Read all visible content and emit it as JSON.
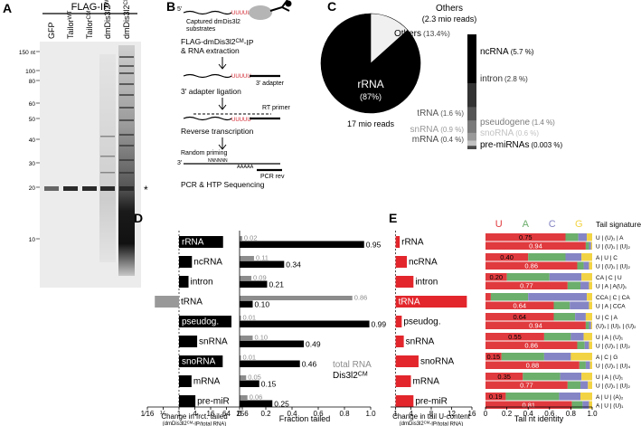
{
  "panel_a": {
    "letter": "A",
    "header": "FLAG-IP",
    "lanes": [
      {
        "text": "GFP"
      },
      {
        "text": "Tailor",
        "sup": "WT"
      },
      {
        "text": "Tailor",
        "sup": "CM"
      },
      {
        "text": "dmDis3l2",
        "sup": "WT"
      },
      {
        "text": "dmDis3l2",
        "sup": "CM"
      }
    ],
    "size_markers": [
      "150 nt",
      "100",
      "80",
      "60",
      "50",
      "40",
      "30",
      "20",
      "10"
    ],
    "band_marker": "*"
  },
  "panel_b": {
    "letter": "B",
    "five_prime": "5'",
    "three_prime": "3'",
    "uridines": "UUUUU",
    "captured": "Captured dmDis3l2",
    "substrates": "substrates",
    "step1": {
      "text": "FLAG-dmDis3l2",
      "sup": "CM",
      "rest": "-IP"
    },
    "step1b": "& RNA extraction",
    "adapter": "3' adapter",
    "step2": "3' adapter ligation",
    "rt_primer": "RT primer",
    "step3": "Reverse transcription",
    "random_priming": "Random priming",
    "random_seq": "NNNNNN",
    "poly_a": "AAAAA",
    "pcr_rev": "PCR rev",
    "step4": "PCR & HTP Sequencing"
  },
  "panel_c": {
    "letter": "C",
    "pie": {
      "type": "pie",
      "categories": [
        "rRNA",
        "Others"
      ],
      "values": [
        87,
        13.4
      ],
      "value_labels": [
        "(87%)",
        "(13.4%)"
      ],
      "colors": [
        "#000000",
        "#f0f0f0"
      ],
      "caption": "17 mio reads"
    },
    "others": {
      "type": "stacked-bar",
      "title": "Others",
      "subtitle": "(2.3 mio reads)",
      "categories": [
        "ncRNA",
        "intron",
        "tRNA",
        "pseudogene",
        "snRNA",
        "snoRNA",
        "mRNA",
        "pre-miRNAs"
      ],
      "values": [
        5.7,
        2.8,
        1.6,
        1.4,
        0.9,
        0.6,
        0.4,
        0.003
      ],
      "value_labels": [
        "(5.7 %)",
        "(2.8 %)",
        "(1.6 %)",
        "(1.4 %)",
        "(0.9 %)",
        "(0.6 %)",
        "(0.4 %)",
        "(0.003 %)"
      ],
      "colors": [
        "#000000",
        "#333333",
        "#555555",
        "#7a7a7a",
        "#999999",
        "#c2c2c2",
        "#4a4a4a",
        "#000000"
      ]
    }
  },
  "panel_d": {
    "letter": "D",
    "categories": [
      "rRNA",
      "ncRNA",
      "intron",
      "tRNA",
      "pseudog.",
      "snRNA",
      "snoRNA",
      "mRNA",
      "pre-miR"
    ],
    "change": {
      "type": "bar",
      "log_scale": true,
      "values": [
        47.5,
        3.1,
        2.3,
        0.12,
        99,
        4.9,
        46,
        3,
        4.2
      ],
      "colors": [
        "#000000",
        "#000000",
        "#000000",
        "#999999",
        "#000000",
        "#000000",
        "#000000",
        "#000000",
        "#000000"
      ],
      "xlim": [
        0.0625,
        256
      ],
      "xticks": [
        {
          "value": 0.0625,
          "label": "1⁄16"
        },
        {
          "value": 0.25,
          "label": "¼"
        },
        1,
        4,
        16,
        64,
        256
      ],
      "xlabel": "Change in frct. tailed",
      "xlabel2": {
        "text": "(dmDis3l2",
        "sup": "CM",
        "rest": "-IP/total RNA)"
      }
    },
    "fraction": {
      "type": "bar",
      "xlim": [
        0,
        1
      ],
      "xticks": [
        0,
        0.2,
        0.4,
        0.6,
        0.8,
        {
          "value": 1,
          "label": "1.0"
        }
      ],
      "xlabel": "Fraction tailed",
      "series": [
        {
          "name": "total RNA",
          "color": "#8c8c8c",
          "values": [
            0.02,
            0.11,
            0.09,
            0.86,
            0.01,
            0.1,
            0.01,
            0.05,
            0.06
          ],
          "value_labels": [
            "0.02",
            "0.11",
            "0.09",
            "0.86",
            "0.01",
            "0.10",
            "0.01",
            "0.05",
            "0.06"
          ]
        },
        {
          "name": {
            "text": "Dis3l2",
            "sup": "CM"
          },
          "color": "#000000",
          "values": [
            0.95,
            0.34,
            0.21,
            0.1,
            0.99,
            0.49,
            0.46,
            0.15,
            0.25
          ],
          "value_labels": [
            "0.95",
            "0.34",
            "0.21",
            "0.10",
            "0.99",
            "0.49",
            "0.46",
            "0.15",
            "0.25"
          ]
        }
      ]
    }
  },
  "panel_e": {
    "letter": "E",
    "categories": [
      "rRNA",
      "ncRNA",
      "intron",
      "tRNA",
      "pseudog.",
      "snRNA",
      "snoRNA",
      "mRNA",
      "pre-miR"
    ],
    "u_change": {
      "type": "bar",
      "color": "#e2262c",
      "values": [
        1.8,
        3.2,
        4.5,
        15,
        2.2,
        2.6,
        5.5,
        4,
        4.5
      ],
      "xlim": [
        0,
        16
      ],
      "xticks": [
        1,
        4,
        8,
        12,
        16
      ],
      "xlabel": "Change in tail U-content",
      "xlabel2": {
        "text": "(dmDis3l2",
        "sup": "CM",
        "rest": "-IP/total RNA)"
      }
    },
    "identity": {
      "type": "stacked-bar",
      "nucleotides": [
        "U",
        "A",
        "C",
        "G"
      ],
      "colors": [
        "#e03a3e",
        "#6cae6c",
        "#8585c5",
        "#f2d344"
      ],
      "xlim": [
        0,
        1
      ],
      "xticks": [
        0,
        0.2,
        0.4,
        0.6,
        0.8,
        {
          "value": 1,
          "label": "1.0"
        }
      ],
      "xlabel": "Tail nt identity",
      "stacks": [
        [
          [
            0.75,
            0.12,
            0.08,
            0.05
          ],
          [
            0.94,
            0.03,
            0.02,
            0.01
          ]
        ],
        [
          [
            0.4,
            0.35,
            0.15,
            0.1
          ],
          [
            0.86,
            0.06,
            0.05,
            0.03
          ]
        ],
        [
          [
            0.2,
            0.4,
            0.3,
            0.1
          ],
          [
            0.77,
            0.12,
            0.08,
            0.03
          ]
        ],
        [
          [
            0.05,
            0.35,
            0.55,
            0.05
          ],
          [
            0.64,
            0.15,
            0.18,
            0.03
          ]
        ],
        [
          [
            0.64,
            0.2,
            0.1,
            0.06
          ],
          [
            0.94,
            0.03,
            0.02,
            0.01
          ]
        ],
        [
          [
            0.55,
            0.25,
            0.12,
            0.08
          ],
          [
            0.86,
            0.07,
            0.04,
            0.03
          ]
        ],
        [
          [
            0.15,
            0.4,
            0.25,
            0.2
          ],
          [
            0.88,
            0.06,
            0.04,
            0.02
          ]
        ],
        [
          [
            0.35,
            0.35,
            0.2,
            0.1
          ],
          [
            0.77,
            0.12,
            0.07,
            0.04
          ]
        ],
        [
          [
            0.19,
            0.5,
            0.2,
            0.11
          ],
          [
            0.81,
            0.1,
            0.06,
            0.03
          ]
        ]
      ],
      "value_labels": [
        [
          "0.75",
          "0.94"
        ],
        [
          "0.40",
          "0.86"
        ],
        [
          "0.20",
          "0.77"
        ],
        [
          null,
          "0.64"
        ],
        [
          "0.64",
          "0.94"
        ],
        [
          "0.55",
          "0.86"
        ],
        [
          "0.15",
          "0.88"
        ],
        [
          "0.35",
          "0.77"
        ],
        [
          "0.19",
          "0.81"
        ]
      ],
      "signature_title": "Tail signature",
      "signatures": [
        [
          "U | (U)₁ | A",
          "U | (U)₁ | (U)₂"
        ],
        [
          "A | U | C",
          "U | (U)₁ | (U)₂"
        ],
        [
          "CA | C | U",
          "U | A | A(U)₁"
        ],
        [
          "CCA | C | CA",
          "U | A | CCA"
        ],
        [
          "U | C | A",
          "(U)₁ | (U)₁ | (U)₂"
        ],
        [
          "U | A | (U)₁",
          "U | (U)₁ | (U)₂"
        ],
        [
          "A | C | G",
          "U | (U)₁ | (U)₄"
        ],
        [
          "U | A | (U)₁",
          "U | (U)₁ | (U)₂"
        ],
        [
          "A | U | (A)₂",
          "A | U | (U)₁"
        ]
      ]
    }
  }
}
